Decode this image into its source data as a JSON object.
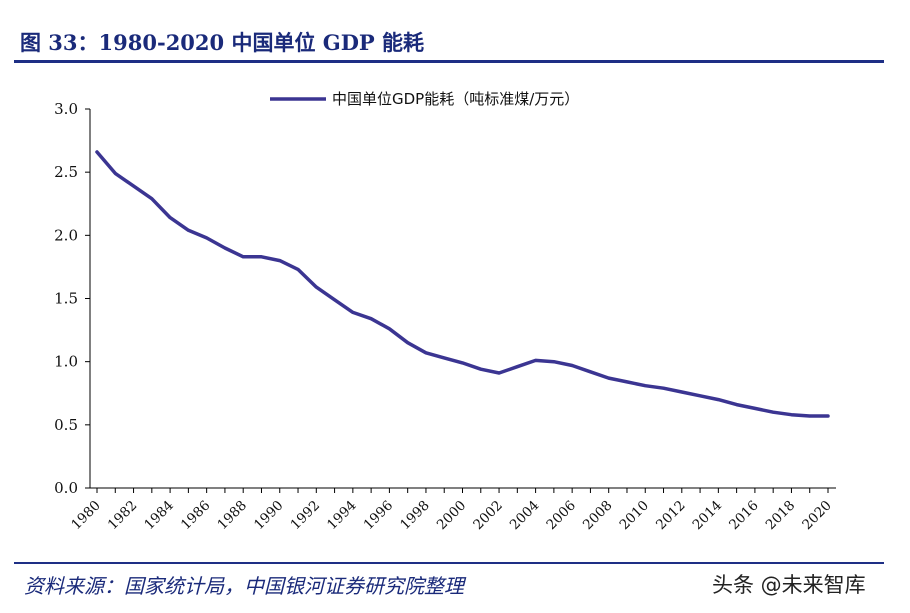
{
  "figure": {
    "title": "图 33：1980-2020 中国单位 GDP 能耗",
    "source": "资料来源：国家统计局，中国银河证券研究院整理",
    "watermark": "头条 @未来智库"
  },
  "colors": {
    "line": "#3b3592",
    "rule": "#1e2f85",
    "text": "#1a2a7a"
  },
  "chart_data": {
    "type": "line",
    "title": "",
    "xlabel": "",
    "ylabel": "",
    "ylim": [
      0,
      3.0
    ],
    "yticks": [
      "0.0",
      "0.5",
      "1.0",
      "1.5",
      "2.0",
      "2.5",
      "3.0"
    ],
    "xticks": [
      "1980",
      "1982",
      "1984",
      "1986",
      "1988",
      "1990",
      "1992",
      "1994",
      "1996",
      "1998",
      "2000",
      "2002",
      "2004",
      "2006",
      "2008",
      "2010",
      "2012",
      "2014",
      "2016",
      "2018",
      "2020"
    ],
    "legend_position": "top-center",
    "grid": false,
    "x": [
      1980,
      1981,
      1982,
      1983,
      1984,
      1985,
      1986,
      1987,
      1988,
      1989,
      1990,
      1991,
      1992,
      1993,
      1994,
      1995,
      1996,
      1997,
      1998,
      1999,
      2000,
      2001,
      2002,
      2003,
      2004,
      2005,
      2006,
      2007,
      2008,
      2009,
      2010,
      2011,
      2012,
      2013,
      2014,
      2015,
      2016,
      2017,
      2018,
      2019,
      2020
    ],
    "series": [
      {
        "name": "中国单位GDP能耗（吨标准煤/万元）",
        "values": [
          2.66,
          2.49,
          2.39,
          2.29,
          2.14,
          2.04,
          1.98,
          1.9,
          1.83,
          1.83,
          1.8,
          1.73,
          1.59,
          1.49,
          1.39,
          1.34,
          1.26,
          1.15,
          1.07,
          1.03,
          0.99,
          0.94,
          0.91,
          0.96,
          1.01,
          1.0,
          0.97,
          0.92,
          0.87,
          0.84,
          0.81,
          0.79,
          0.76,
          0.73,
          0.7,
          0.66,
          0.63,
          0.6,
          0.58,
          0.57,
          0.57
        ]
      }
    ]
  }
}
